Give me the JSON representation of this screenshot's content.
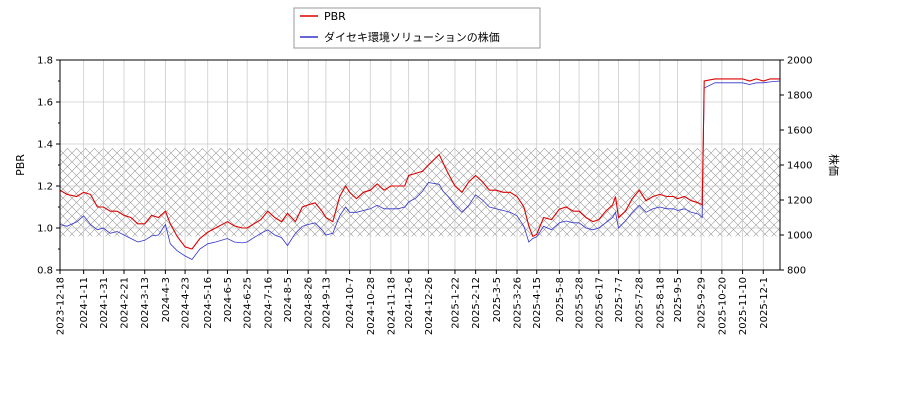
{
  "chart_data": {
    "type": "line",
    "title": "",
    "ylabel_left": "PBR",
    "ylabel_right": "株価",
    "ylim_left": [
      0.8,
      1.8
    ],
    "ylim_right": [
      800,
      2000
    ],
    "yticks_left": [
      "0.8",
      "1.0",
      "1.2",
      "1.4",
      "1.6",
      "1.8"
    ],
    "yticks_right": [
      "800",
      "1000",
      "1200",
      "1400",
      "1600",
      "1800",
      "2000"
    ],
    "xrange": [
      "2023-12-18",
      "2025-12-18"
    ],
    "xticks": [
      "2023-12-18",
      "2024-1-11",
      "2024-1-31",
      "2024-2-21",
      "2024-3-13",
      "2024-4-3",
      "2024-4-23",
      "2024-5-16",
      "2024-6-5",
      "2024-6-25",
      "2024-7-16",
      "2024-8-5",
      "2024-8-26",
      "2024-9-13",
      "2024-10-7",
      "2024-10-28",
      "2024-11-18",
      "2024-12-6",
      "2024-12-26",
      "2025-1-22",
      "2025-2-12",
      "2025-3-5",
      "2025-3-26",
      "2025-4-15",
      "2025-5-8",
      "2025-5-28",
      "2025-6-17",
      "2025-7-7",
      "2025-7-28",
      "2025-8-18",
      "2025-9-5",
      "2025-9-29",
      "2025-10-20",
      "2025-11-10",
      "2025-12-1"
    ],
    "pbr_band": [
      0.96,
      1.38
    ],
    "grid": true,
    "legend_position": "top-center",
    "series": [
      {
        "name": "PBR",
        "axis": "left",
        "color": "#dd0000",
        "points": [
          [
            "2023-12-18",
            1.18
          ],
          [
            "2023-12-25",
            1.16
          ],
          [
            "2024-1-4",
            1.15
          ],
          [
            "2024-1-11",
            1.17
          ],
          [
            "2024-1-18",
            1.16
          ],
          [
            "2024-1-25",
            1.1
          ],
          [
            "2024-1-31",
            1.1
          ],
          [
            "2024-2-7",
            1.08
          ],
          [
            "2024-2-14",
            1.08
          ],
          [
            "2024-2-21",
            1.06
          ],
          [
            "2024-2-28",
            1.05
          ],
          [
            "2024-3-6",
            1.02
          ],
          [
            "2024-3-13",
            1.02
          ],
          [
            "2024-3-20",
            1.06
          ],
          [
            "2024-3-27",
            1.05
          ],
          [
            "2024-4-3",
            1.08
          ],
          [
            "2024-4-8",
            1.02
          ],
          [
            "2024-4-15",
            0.96
          ],
          [
            "2024-4-23",
            0.91
          ],
          [
            "2024-4-30",
            0.9
          ],
          [
            "2024-5-8",
            0.95
          ],
          [
            "2024-5-16",
            0.98
          ],
          [
            "2024-5-24",
            1.0
          ],
          [
            "2024-6-5",
            1.03
          ],
          [
            "2024-6-12",
            1.01
          ],
          [
            "2024-6-20",
            1.0
          ],
          [
            "2024-6-25",
            1.0
          ],
          [
            "2024-7-2",
            1.02
          ],
          [
            "2024-7-9",
            1.04
          ],
          [
            "2024-7-16",
            1.08
          ],
          [
            "2024-7-23",
            1.05
          ],
          [
            "2024-7-30",
            1.03
          ],
          [
            "2024-8-5",
            1.07
          ],
          [
            "2024-8-13",
            1.03
          ],
          [
            "2024-8-20",
            1.1
          ],
          [
            "2024-8-26",
            1.11
          ],
          [
            "2024-9-2",
            1.12
          ],
          [
            "2024-9-9",
            1.08
          ],
          [
            "2024-9-13",
            1.05
          ],
          [
            "2024-9-20",
            1.03
          ],
          [
            "2024-9-27",
            1.15
          ],
          [
            "2024-10-3",
            1.2
          ],
          [
            "2024-10-7",
            1.17
          ],
          [
            "2024-10-14",
            1.14
          ],
          [
            "2024-10-21",
            1.17
          ],
          [
            "2024-10-28",
            1.18
          ],
          [
            "2024-11-4",
            1.21
          ],
          [
            "2024-11-11",
            1.18
          ],
          [
            "2024-11-18",
            1.2
          ],
          [
            "2024-11-25",
            1.2
          ],
          [
            "2024-12-2",
            1.2
          ],
          [
            "2024-12-6",
            1.25
          ],
          [
            "2024-12-13",
            1.26
          ],
          [
            "2024-12-20",
            1.27
          ],
          [
            "2024-12-26",
            1.3
          ],
          [
            "2025-1-6",
            1.35
          ],
          [
            "2025-1-10",
            1.31
          ],
          [
            "2025-1-15",
            1.26
          ],
          [
            "2025-1-22",
            1.2
          ],
          [
            "2025-1-29",
            1.17
          ],
          [
            "2025-2-5",
            1.22
          ],
          [
            "2025-2-12",
            1.25
          ],
          [
            "2025-2-19",
            1.22
          ],
          [
            "2025-2-26",
            1.18
          ],
          [
            "2025-3-5",
            1.18
          ],
          [
            "2025-3-12",
            1.17
          ],
          [
            "2025-3-19",
            1.17
          ],
          [
            "2025-3-26",
            1.15
          ],
          [
            "2025-4-2",
            1.1
          ],
          [
            "2025-4-7",
            1.01
          ],
          [
            "2025-4-11",
            0.96
          ],
          [
            "2025-4-15",
            0.97
          ],
          [
            "2025-4-22",
            1.05
          ],
          [
            "2025-4-30",
            1.04
          ],
          [
            "2025-5-8",
            1.09
          ],
          [
            "2025-5-15",
            1.1
          ],
          [
            "2025-5-22",
            1.08
          ],
          [
            "2025-5-28",
            1.08
          ],
          [
            "2025-6-4",
            1.05
          ],
          [
            "2025-6-11",
            1.03
          ],
          [
            "2025-6-17",
            1.04
          ],
          [
            "2025-6-24",
            1.08
          ],
          [
            "2025-7-1",
            1.11
          ],
          [
            "2025-7-4",
            1.15
          ],
          [
            "2025-7-7",
            1.05
          ],
          [
            "2025-7-14",
            1.08
          ],
          [
            "2025-7-21",
            1.14
          ],
          [
            "2025-7-28",
            1.18
          ],
          [
            "2025-8-4",
            1.13
          ],
          [
            "2025-8-11",
            1.15
          ],
          [
            "2025-8-18",
            1.16
          ],
          [
            "2025-8-25",
            1.15
          ],
          [
            "2025-9-1",
            1.15
          ],
          [
            "2025-9-5",
            1.14
          ],
          [
            "2025-9-12",
            1.15
          ],
          [
            "2025-9-19",
            1.13
          ],
          [
            "2025-9-26",
            1.12
          ],
          [
            "2025-9-30",
            1.11
          ],
          [
            "2025-10-2",
            1.7
          ],
          [
            "2025-10-13",
            1.71
          ],
          [
            "2025-10-20",
            1.71
          ],
          [
            "2025-11-3",
            1.71
          ],
          [
            "2025-11-10",
            1.71
          ],
          [
            "2025-11-17",
            1.7
          ],
          [
            "2025-11-24",
            1.71
          ],
          [
            "2025-12-1",
            1.7
          ],
          [
            "2025-12-8",
            1.71
          ],
          [
            "2025-12-18",
            1.71
          ]
        ]
      },
      {
        "name": "ダイセキ環境ソリューションの株価",
        "axis": "right",
        "color": "#3333cc",
        "points": [
          [
            "2023-12-18",
            1060
          ],
          [
            "2023-12-25",
            1050
          ],
          [
            "2024-1-4",
            1075
          ],
          [
            "2024-1-11",
            1110
          ],
          [
            "2024-1-18",
            1060
          ],
          [
            "2024-1-25",
            1030
          ],
          [
            "2024-1-31",
            1040
          ],
          [
            "2024-2-7",
            1010
          ],
          [
            "2024-2-14",
            1020
          ],
          [
            "2024-2-21",
            1000
          ],
          [
            "2024-2-28",
            980
          ],
          [
            "2024-3-6",
            960
          ],
          [
            "2024-3-13",
            970
          ],
          [
            "2024-3-20",
            995
          ],
          [
            "2024-3-27",
            1000
          ],
          [
            "2024-4-3",
            1060
          ],
          [
            "2024-4-8",
            950
          ],
          [
            "2024-4-15",
            910
          ],
          [
            "2024-4-23",
            880
          ],
          [
            "2024-4-30",
            860
          ],
          [
            "2024-5-8",
            920
          ],
          [
            "2024-5-16",
            950
          ],
          [
            "2024-5-24",
            960
          ],
          [
            "2024-6-5",
            980
          ],
          [
            "2024-6-12",
            960
          ],
          [
            "2024-6-20",
            955
          ],
          [
            "2024-6-25",
            960
          ],
          [
            "2024-7-2",
            985
          ],
          [
            "2024-7-9",
            1010
          ],
          [
            "2024-7-16",
            1030
          ],
          [
            "2024-7-23",
            1000
          ],
          [
            "2024-7-30",
            985
          ],
          [
            "2024-8-5",
            940
          ],
          [
            "2024-8-13",
            1010
          ],
          [
            "2024-8-20",
            1050
          ],
          [
            "2024-8-26",
            1060
          ],
          [
            "2024-9-2",
            1070
          ],
          [
            "2024-9-9",
            1030
          ],
          [
            "2024-9-13",
            1000
          ],
          [
            "2024-9-20",
            1010
          ],
          [
            "2024-9-27",
            1110
          ],
          [
            "2024-10-3",
            1160
          ],
          [
            "2024-10-7",
            1130
          ],
          [
            "2024-10-14",
            1130
          ],
          [
            "2024-10-21",
            1140
          ],
          [
            "2024-10-28",
            1150
          ],
          [
            "2024-11-4",
            1170
          ],
          [
            "2024-11-11",
            1150
          ],
          [
            "2024-11-18",
            1150
          ],
          [
            "2024-11-25",
            1150
          ],
          [
            "2024-12-2",
            1160
          ],
          [
            "2024-12-6",
            1190
          ],
          [
            "2024-12-13",
            1210
          ],
          [
            "2024-12-20",
            1250
          ],
          [
            "2024-12-26",
            1300
          ],
          [
            "2025-1-6",
            1290
          ],
          [
            "2025-1-10",
            1250
          ],
          [
            "2025-1-15",
            1220
          ],
          [
            "2025-1-22",
            1170
          ],
          [
            "2025-1-29",
            1130
          ],
          [
            "2025-2-5",
            1170
          ],
          [
            "2025-2-12",
            1230
          ],
          [
            "2025-2-19",
            1200
          ],
          [
            "2025-2-26",
            1160
          ],
          [
            "2025-3-5",
            1150
          ],
          [
            "2025-3-12",
            1140
          ],
          [
            "2025-3-19",
            1130
          ],
          [
            "2025-3-26",
            1110
          ],
          [
            "2025-4-2",
            1050
          ],
          [
            "2025-4-7",
            960
          ],
          [
            "2025-4-11",
            980
          ],
          [
            "2025-4-15",
            990
          ],
          [
            "2025-4-22",
            1050
          ],
          [
            "2025-4-30",
            1030
          ],
          [
            "2025-5-8",
            1070
          ],
          [
            "2025-5-15",
            1080
          ],
          [
            "2025-5-22",
            1070
          ],
          [
            "2025-5-28",
            1070
          ],
          [
            "2025-6-4",
            1040
          ],
          [
            "2025-6-11",
            1030
          ],
          [
            "2025-6-17",
            1040
          ],
          [
            "2025-6-24",
            1070
          ],
          [
            "2025-7-1",
            1100
          ],
          [
            "2025-7-4",
            1130
          ],
          [
            "2025-7-7",
            1040
          ],
          [
            "2025-7-14",
            1080
          ],
          [
            "2025-7-21",
            1130
          ],
          [
            "2025-7-28",
            1170
          ],
          [
            "2025-8-4",
            1130
          ],
          [
            "2025-8-11",
            1150
          ],
          [
            "2025-8-18",
            1160
          ],
          [
            "2025-8-25",
            1150
          ],
          [
            "2025-9-1",
            1150
          ],
          [
            "2025-9-5",
            1140
          ],
          [
            "2025-9-12",
            1150
          ],
          [
            "2025-9-19",
            1130
          ],
          [
            "2025-9-26",
            1120
          ],
          [
            "2025-9-30",
            1100
          ],
          [
            "2025-10-2",
            1840
          ],
          [
            "2025-10-13",
            1870
          ],
          [
            "2025-10-20",
            1870
          ],
          [
            "2025-11-3",
            1870
          ],
          [
            "2025-11-10",
            1870
          ],
          [
            "2025-11-17",
            1860
          ],
          [
            "2025-11-24",
            1870
          ],
          [
            "2025-12-1",
            1870
          ],
          [
            "2025-12-8",
            1875
          ],
          [
            "2025-12-18",
            1880
          ]
        ]
      }
    ]
  }
}
